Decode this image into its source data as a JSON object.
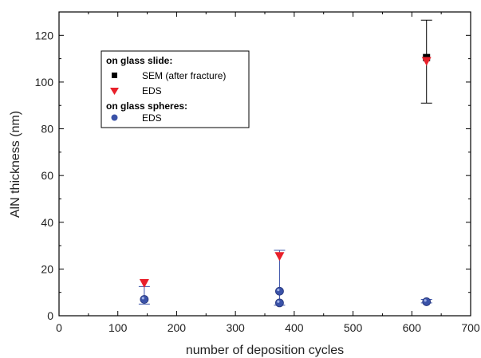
{
  "chart_data": {
    "type": "scatter",
    "xlabel": "number of deposition cycles",
    "ylabel": "AlN thickness (nm)",
    "xlim": [
      0,
      700
    ],
    "ylim": [
      0,
      130
    ],
    "xticks": [
      0,
      100,
      200,
      300,
      400,
      500,
      600,
      700
    ],
    "yticks": [
      0,
      20,
      40,
      60,
      80,
      100,
      120
    ],
    "grid": false,
    "legend_position": "top-left",
    "legend": {
      "group1": "on glass slide:",
      "item1": "SEM (after fracture)",
      "item2": "EDS",
      "group2": "on glass spheres:",
      "item3": "EDS"
    },
    "series": [
      {
        "name": "SEM (after fracture)",
        "marker": "square",
        "color": "#000000",
        "points": [
          {
            "x": 625,
            "y": 110.5,
            "err_low": 91,
            "err_high": 126.5
          }
        ]
      },
      {
        "name": "EDS",
        "marker": "triangle-down",
        "color": "#e8202a",
        "points": [
          {
            "x": 145,
            "y": 14
          },
          {
            "x": 375,
            "y": 25.5
          },
          {
            "x": 625,
            "y": 109
          }
        ]
      },
      {
        "name": "EDS",
        "marker": "sphere",
        "color": "#3a52a8",
        "points": [
          {
            "x": 145,
            "y": 7,
            "err_low": 5,
            "err_high": 12.5
          },
          {
            "x": 375,
            "y": 10.5
          },
          {
            "x": 375,
            "y": 5.5,
            "err_low": 4.5,
            "err_high": 28
          },
          {
            "x": 625,
            "y": 6,
            "err_low": 5.5,
            "err_high": 7
          }
        ]
      }
    ]
  }
}
